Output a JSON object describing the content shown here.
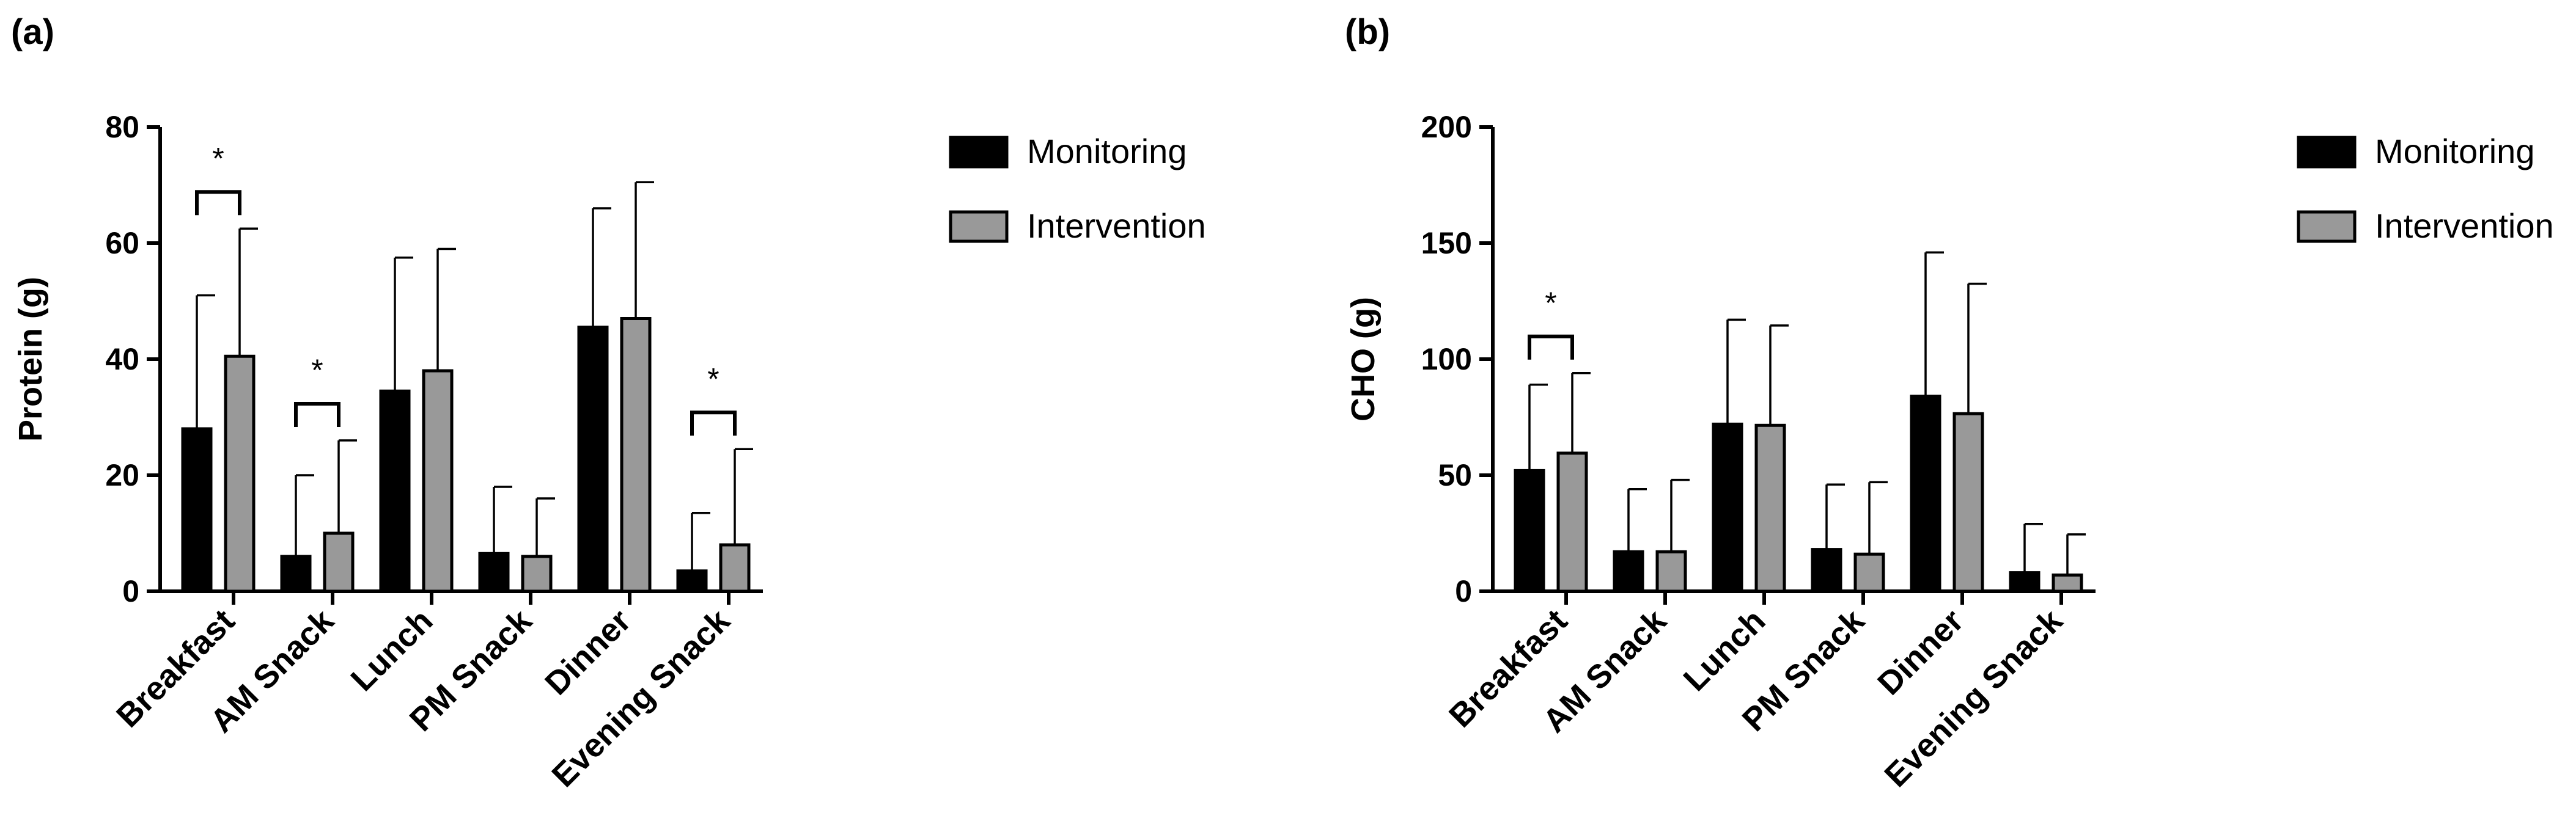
{
  "chart_data": [
    {
      "type": "bar",
      "panel_label": "(a)",
      "ylabel": "Protein (g)",
      "xlabel": "",
      "ylim": [
        0,
        80
      ],
      "yticks": [
        0,
        20,
        40,
        60,
        80
      ],
      "categories": [
        "Breakfast",
        "AM Snack",
        "Lunch",
        "PM Snack",
        "Dinner",
        "Evening Snack"
      ],
      "series": [
        {
          "name": "Monitoring",
          "color": "#000000",
          "values": [
            28,
            6,
            34.5,
            6.5,
            45.5,
            3.5
          ],
          "error": [
            23,
            14,
            23,
            11.5,
            20.5,
            10
          ]
        },
        {
          "name": "Intervention",
          "color": "#999999",
          "values": [
            40.5,
            10,
            38,
            6,
            47,
            8
          ],
          "error": [
            22,
            16,
            21,
            10,
            23.5,
            16.5
          ]
        }
      ],
      "significance": [
        {
          "category": "Breakfast",
          "label": "*"
        },
        {
          "category": "AM Snack",
          "label": "*"
        },
        {
          "category": "Evening Snack",
          "label": "*"
        }
      ],
      "legend": "right"
    },
    {
      "type": "bar",
      "panel_label": "(b)",
      "ylabel": "CHO (g)",
      "xlabel": "",
      "ylim": [
        0,
        200
      ],
      "yticks": [
        0,
        50,
        100,
        150,
        200
      ],
      "categories": [
        "Breakfast",
        "AM Snack",
        "Lunch",
        "PM Snack",
        "Dinner",
        "Evening Snack"
      ],
      "series": [
        {
          "name": "Monitoring",
          "color": "#000000",
          "values": [
            52,
            17,
            72,
            18,
            84,
            8
          ],
          "error": [
            37,
            27,
            45,
            28,
            62,
            21
          ]
        },
        {
          "name": "Intervention",
          "color": "#999999",
          "values": [
            59.5,
            17,
            71.5,
            16,
            76.5,
            7
          ],
          "error": [
            34.5,
            31,
            43,
            31,
            56,
            17.5
          ]
        }
      ],
      "significance": [
        {
          "category": "Breakfast",
          "label": "*"
        }
      ],
      "legend": "right"
    }
  ]
}
